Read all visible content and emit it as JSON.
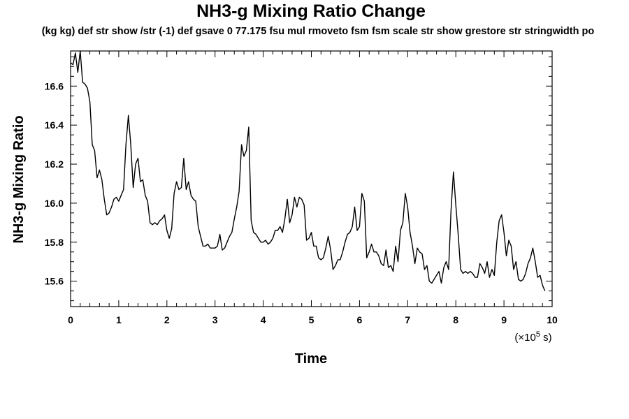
{
  "chart_data": {
    "type": "line",
    "title": "NH3-g Mixing Ratio Change",
    "subtitle": "(kg kg) def str show /str (-1) def gsave 0 77.175 fsu mul rmoveto fsm fsm scale str show grestore str stringwidth po",
    "xlabel": "Time",
    "ylabel": "NH3-g Mixing Ratio",
    "x_unit": {
      "prefix": "(×10",
      "exponent": "5",
      "suffix": " s)"
    },
    "xlim": [
      0,
      10
    ],
    "ylim": [
      15.47,
      16.78
    ],
    "x_ticks": [
      "0",
      "1",
      "2",
      "3",
      "4",
      "5",
      "6",
      "7",
      "8",
      "9",
      "10"
    ],
    "y_ticks": [
      "15.6",
      "15.8",
      "16.0",
      "16.2",
      "16.4",
      "16.6"
    ],
    "series": [
      {
        "name": "NH3-g",
        "points": [
          [
            0.0,
            16.72
          ],
          [
            0.05,
            16.71
          ],
          [
            0.1,
            16.77
          ],
          [
            0.15,
            16.67
          ],
          [
            0.2,
            16.78
          ],
          [
            0.25,
            16.62
          ],
          [
            0.3,
            16.61
          ],
          [
            0.35,
            16.59
          ],
          [
            0.4,
            16.52
          ],
          [
            0.45,
            16.3
          ],
          [
            0.5,
            16.27
          ],
          [
            0.55,
            16.13
          ],
          [
            0.6,
            16.17
          ],
          [
            0.65,
            16.12
          ],
          [
            0.7,
            16.02
          ],
          [
            0.75,
            15.94
          ],
          [
            0.8,
            15.95
          ],
          [
            0.85,
            15.98
          ],
          [
            0.9,
            16.02
          ],
          [
            0.95,
            16.03
          ],
          [
            1.0,
            16.01
          ],
          [
            1.05,
            16.04
          ],
          [
            1.1,
            16.07
          ],
          [
            1.15,
            16.3
          ],
          [
            1.2,
            16.45
          ],
          [
            1.25,
            16.3
          ],
          [
            1.3,
            16.08
          ],
          [
            1.35,
            16.2
          ],
          [
            1.4,
            16.23
          ],
          [
            1.45,
            16.11
          ],
          [
            1.5,
            16.12
          ],
          [
            1.55,
            16.04
          ],
          [
            1.6,
            16.01
          ],
          [
            1.65,
            15.9
          ],
          [
            1.7,
            15.89
          ],
          [
            1.75,
            15.9
          ],
          [
            1.8,
            15.89
          ],
          [
            1.85,
            15.91
          ],
          [
            1.9,
            15.92
          ],
          [
            1.95,
            15.94
          ],
          [
            2.0,
            15.86
          ],
          [
            2.05,
            15.82
          ],
          [
            2.1,
            15.87
          ],
          [
            2.15,
            16.05
          ],
          [
            2.2,
            16.11
          ],
          [
            2.25,
            16.07
          ],
          [
            2.3,
            16.08
          ],
          [
            2.35,
            16.23
          ],
          [
            2.4,
            16.07
          ],
          [
            2.45,
            16.11
          ],
          [
            2.5,
            16.04
          ],
          [
            2.55,
            16.02
          ],
          [
            2.6,
            16.01
          ],
          [
            2.65,
            15.88
          ],
          [
            2.7,
            15.83
          ],
          [
            2.75,
            15.78
          ],
          [
            2.8,
            15.78
          ],
          [
            2.85,
            15.79
          ],
          [
            2.9,
            15.77
          ],
          [
            2.95,
            15.77
          ],
          [
            3.0,
            15.77
          ],
          [
            3.05,
            15.78
          ],
          [
            3.1,
            15.84
          ],
          [
            3.15,
            15.76
          ],
          [
            3.2,
            15.77
          ],
          [
            3.25,
            15.8
          ],
          [
            3.3,
            15.83
          ],
          [
            3.35,
            15.85
          ],
          [
            3.4,
            15.92
          ],
          [
            3.45,
            15.98
          ],
          [
            3.5,
            16.06
          ],
          [
            3.55,
            16.3
          ],
          [
            3.6,
            16.24
          ],
          [
            3.65,
            16.27
          ],
          [
            3.7,
            16.39
          ],
          [
            3.75,
            15.91
          ],
          [
            3.8,
            15.85
          ],
          [
            3.85,
            15.84
          ],
          [
            3.9,
            15.82
          ],
          [
            3.95,
            15.8
          ],
          [
            4.0,
            15.8
          ],
          [
            4.05,
            15.81
          ],
          [
            4.1,
            15.79
          ],
          [
            4.15,
            15.8
          ],
          [
            4.2,
            15.82
          ],
          [
            4.25,
            15.86
          ],
          [
            4.3,
            15.86
          ],
          [
            4.35,
            15.88
          ],
          [
            4.4,
            15.85
          ],
          [
            4.45,
            15.92
          ],
          [
            4.5,
            16.02
          ],
          [
            4.55,
            15.9
          ],
          [
            4.6,
            15.94
          ],
          [
            4.65,
            16.03
          ],
          [
            4.7,
            15.98
          ],
          [
            4.75,
            16.03
          ],
          [
            4.8,
            16.02
          ],
          [
            4.85,
            15.99
          ],
          [
            4.9,
            15.81
          ],
          [
            4.95,
            15.82
          ],
          [
            5.0,
            15.85
          ],
          [
            5.05,
            15.78
          ],
          [
            5.1,
            15.78
          ],
          [
            5.15,
            15.72
          ],
          [
            5.2,
            15.71
          ],
          [
            5.25,
            15.72
          ],
          [
            5.3,
            15.77
          ],
          [
            5.35,
            15.83
          ],
          [
            5.4,
            15.76
          ],
          [
            5.45,
            15.66
          ],
          [
            5.5,
            15.68
          ],
          [
            5.55,
            15.71
          ],
          [
            5.6,
            15.71
          ],
          [
            5.65,
            15.75
          ],
          [
            5.7,
            15.8
          ],
          [
            5.75,
            15.84
          ],
          [
            5.8,
            15.85
          ],
          [
            5.85,
            15.88
          ],
          [
            5.9,
            15.98
          ],
          [
            5.95,
            15.86
          ],
          [
            6.0,
            15.88
          ],
          [
            6.05,
            16.05
          ],
          [
            6.1,
            16.01
          ],
          [
            6.15,
            15.72
          ],
          [
            6.2,
            15.75
          ],
          [
            6.25,
            15.79
          ],
          [
            6.3,
            15.75
          ],
          [
            6.35,
            15.75
          ],
          [
            6.4,
            15.73
          ],
          [
            6.45,
            15.69
          ],
          [
            6.5,
            15.68
          ],
          [
            6.55,
            15.76
          ],
          [
            6.6,
            15.67
          ],
          [
            6.65,
            15.68
          ],
          [
            6.7,
            15.65
          ],
          [
            6.75,
            15.78
          ],
          [
            6.8,
            15.7
          ],
          [
            6.85,
            15.86
          ],
          [
            6.9,
            15.9
          ],
          [
            6.95,
            16.05
          ],
          [
            7.0,
            15.98
          ],
          [
            7.05,
            15.85
          ],
          [
            7.1,
            15.78
          ],
          [
            7.15,
            15.69
          ],
          [
            7.2,
            15.77
          ],
          [
            7.25,
            15.75
          ],
          [
            7.3,
            15.74
          ],
          [
            7.35,
            15.66
          ],
          [
            7.4,
            15.68
          ],
          [
            7.45,
            15.6
          ],
          [
            7.5,
            15.59
          ],
          [
            7.55,
            15.61
          ],
          [
            7.6,
            15.63
          ],
          [
            7.65,
            15.65
          ],
          [
            7.7,
            15.59
          ],
          [
            7.75,
            15.67
          ],
          [
            7.8,
            15.7
          ],
          [
            7.85,
            15.66
          ],
          [
            7.9,
            15.96
          ],
          [
            7.95,
            16.16
          ],
          [
            8.0,
            15.99
          ],
          [
            8.05,
            15.84
          ],
          [
            8.1,
            15.66
          ],
          [
            8.15,
            15.64
          ],
          [
            8.2,
            15.65
          ],
          [
            8.25,
            15.64
          ],
          [
            8.3,
            15.65
          ],
          [
            8.35,
            15.64
          ],
          [
            8.4,
            15.62
          ],
          [
            8.45,
            15.62
          ],
          [
            8.5,
            15.69
          ],
          [
            8.55,
            15.67
          ],
          [
            8.6,
            15.64
          ],
          [
            8.65,
            15.7
          ],
          [
            8.7,
            15.62
          ],
          [
            8.75,
            15.66
          ],
          [
            8.8,
            15.63
          ],
          [
            8.85,
            15.8
          ],
          [
            8.9,
            15.91
          ],
          [
            8.95,
            15.94
          ],
          [
            9.0,
            15.85
          ],
          [
            9.05,
            15.73
          ],
          [
            9.1,
            15.81
          ],
          [
            9.15,
            15.78
          ],
          [
            9.2,
            15.66
          ],
          [
            9.25,
            15.7
          ],
          [
            9.3,
            15.61
          ],
          [
            9.35,
            15.6
          ],
          [
            9.4,
            15.61
          ],
          [
            9.45,
            15.64
          ],
          [
            9.5,
            15.69
          ],
          [
            9.55,
            15.72
          ],
          [
            9.6,
            15.77
          ],
          [
            9.65,
            15.7
          ],
          [
            9.7,
            15.62
          ],
          [
            9.75,
            15.63
          ],
          [
            9.8,
            15.58
          ],
          [
            9.85,
            15.55
          ]
        ]
      }
    ]
  }
}
